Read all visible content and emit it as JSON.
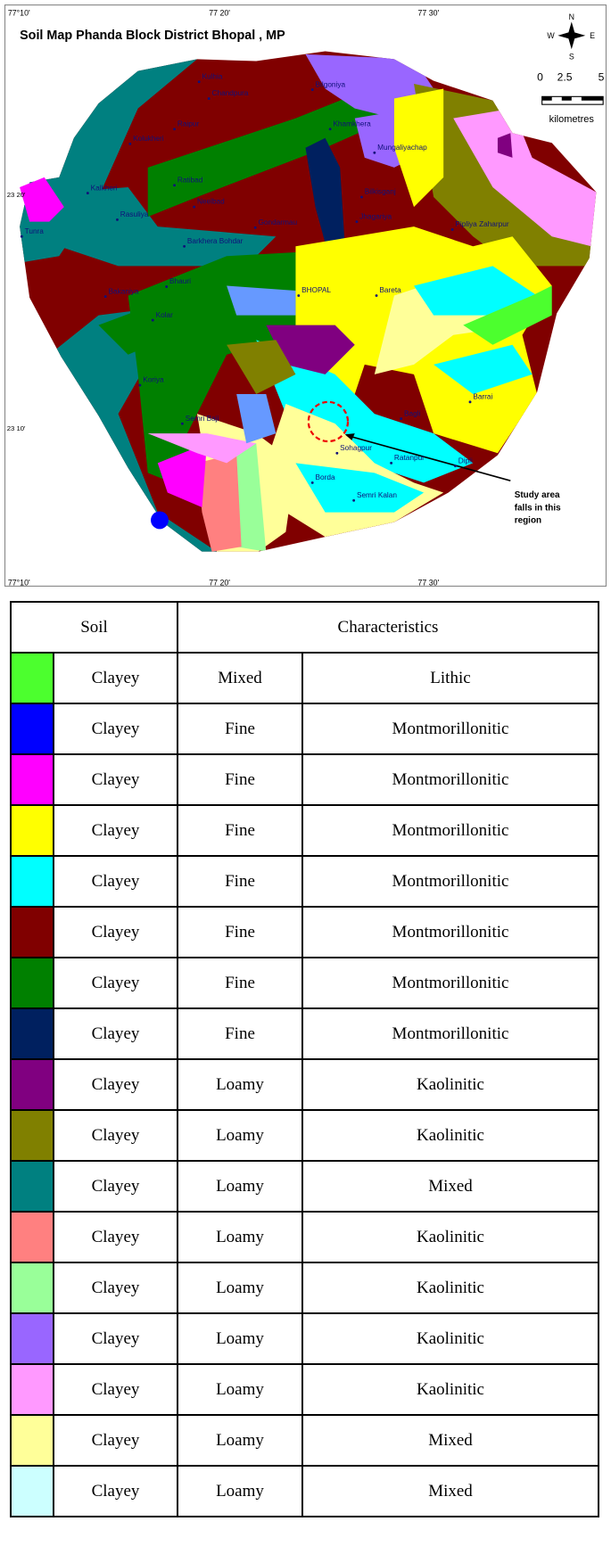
{
  "map": {
    "title": "Soil Map Phanda Block District Bhopal , MP",
    "top_labels": [
      "77°10'",
      "77  20'",
      "77  30'"
    ],
    "bottom_labels": [
      "77°10'",
      "77  20'",
      "77  30'"
    ],
    "left_labels": [
      "23 20'",
      "23 10'"
    ],
    "compass": {
      "n": "N",
      "s": "S",
      "e": "E",
      "w": "W"
    },
    "scale": {
      "ticks": [
        "0",
        "2.5",
        "5"
      ],
      "unit": "kilometres"
    },
    "places": [
      "Kulhia",
      "Chandpura",
      "Bilgoniya",
      "Raipur",
      "Kolukheri",
      "Khamkhera",
      "Mungaliyachap",
      "Ratibad",
      "Kalkheri",
      "Neelbad",
      "Bilkisganj",
      "Rasuliya",
      "Gondarmau",
      "Jhagariya",
      "Pipliya Zaharpur",
      "Tunra",
      "Barkhera Bohdar",
      "Bhauri",
      "BHOPAL",
      "Bareta",
      "Bakaniya",
      "Kolar",
      "Koriya",
      "Barrai",
      "Semri Baji",
      "Bagli",
      "Sohagpur",
      "Ratanpur",
      "Dipli",
      "Borda",
      "Semri Kalan"
    ],
    "annotation": [
      "Study area",
      "falls in this",
      "region"
    ]
  },
  "table": {
    "header": [
      "Soil",
      "Characteristics"
    ],
    "rows": [
      {
        "color": "#4cff2e",
        "cells": [
          "Clayey",
          "Mixed",
          "Lithic"
        ]
      },
      {
        "color": "#0000ff",
        "cells": [
          "Clayey",
          "Fine",
          "Montmorillonitic"
        ]
      },
      {
        "color": "#ff00ff",
        "cells": [
          "Clayey",
          "Fine",
          "Montmorillonitic"
        ]
      },
      {
        "color": "#ffff00",
        "cells": [
          "Clayey",
          "Fine",
          "Montmorillonitic"
        ]
      },
      {
        "color": "#00ffff",
        "cells": [
          "Clayey",
          "Fine",
          "Montmorillonitic"
        ]
      },
      {
        "color": "#800000",
        "cells": [
          "Clayey",
          "Fine",
          "Montmorillonitic"
        ]
      },
      {
        "color": "#008000",
        "cells": [
          "Clayey",
          "Fine",
          "Montmorillonitic"
        ]
      },
      {
        "color": "#00205f",
        "cells": [
          "Clayey",
          "Fine",
          "Montmorillonitic"
        ]
      },
      {
        "color": "#800080",
        "cells": [
          "Clayey",
          "Loamy",
          "Kaolinitic"
        ]
      },
      {
        "color": "#808000",
        "cells": [
          "Clayey",
          "Loamy",
          "Kaolinitic"
        ]
      },
      {
        "color": "#008080",
        "cells": [
          "Clayey",
          "Loamy",
          "Mixed"
        ]
      },
      {
        "color": "#ff8080",
        "cells": [
          "Clayey",
          "Loamy",
          "Kaolinitic"
        ]
      },
      {
        "color": "#99ff99",
        "cells": [
          "Clayey",
          "Loamy",
          "Kaolinitic"
        ]
      },
      {
        "color": "#9966ff",
        "cells": [
          "Clayey",
          "Loamy",
          "Kaolinitic"
        ]
      },
      {
        "color": "#ff99ff",
        "cells": [
          "Clayey",
          "Loamy",
          "Kaolinitic"
        ]
      },
      {
        "color": "#ffff99",
        "cells": [
          "Clayey",
          "Loamy",
          "Mixed"
        ]
      },
      {
        "color": "#ccffff",
        "cells": [
          "Clayey",
          "Loamy",
          "Mixed"
        ]
      }
    ]
  }
}
